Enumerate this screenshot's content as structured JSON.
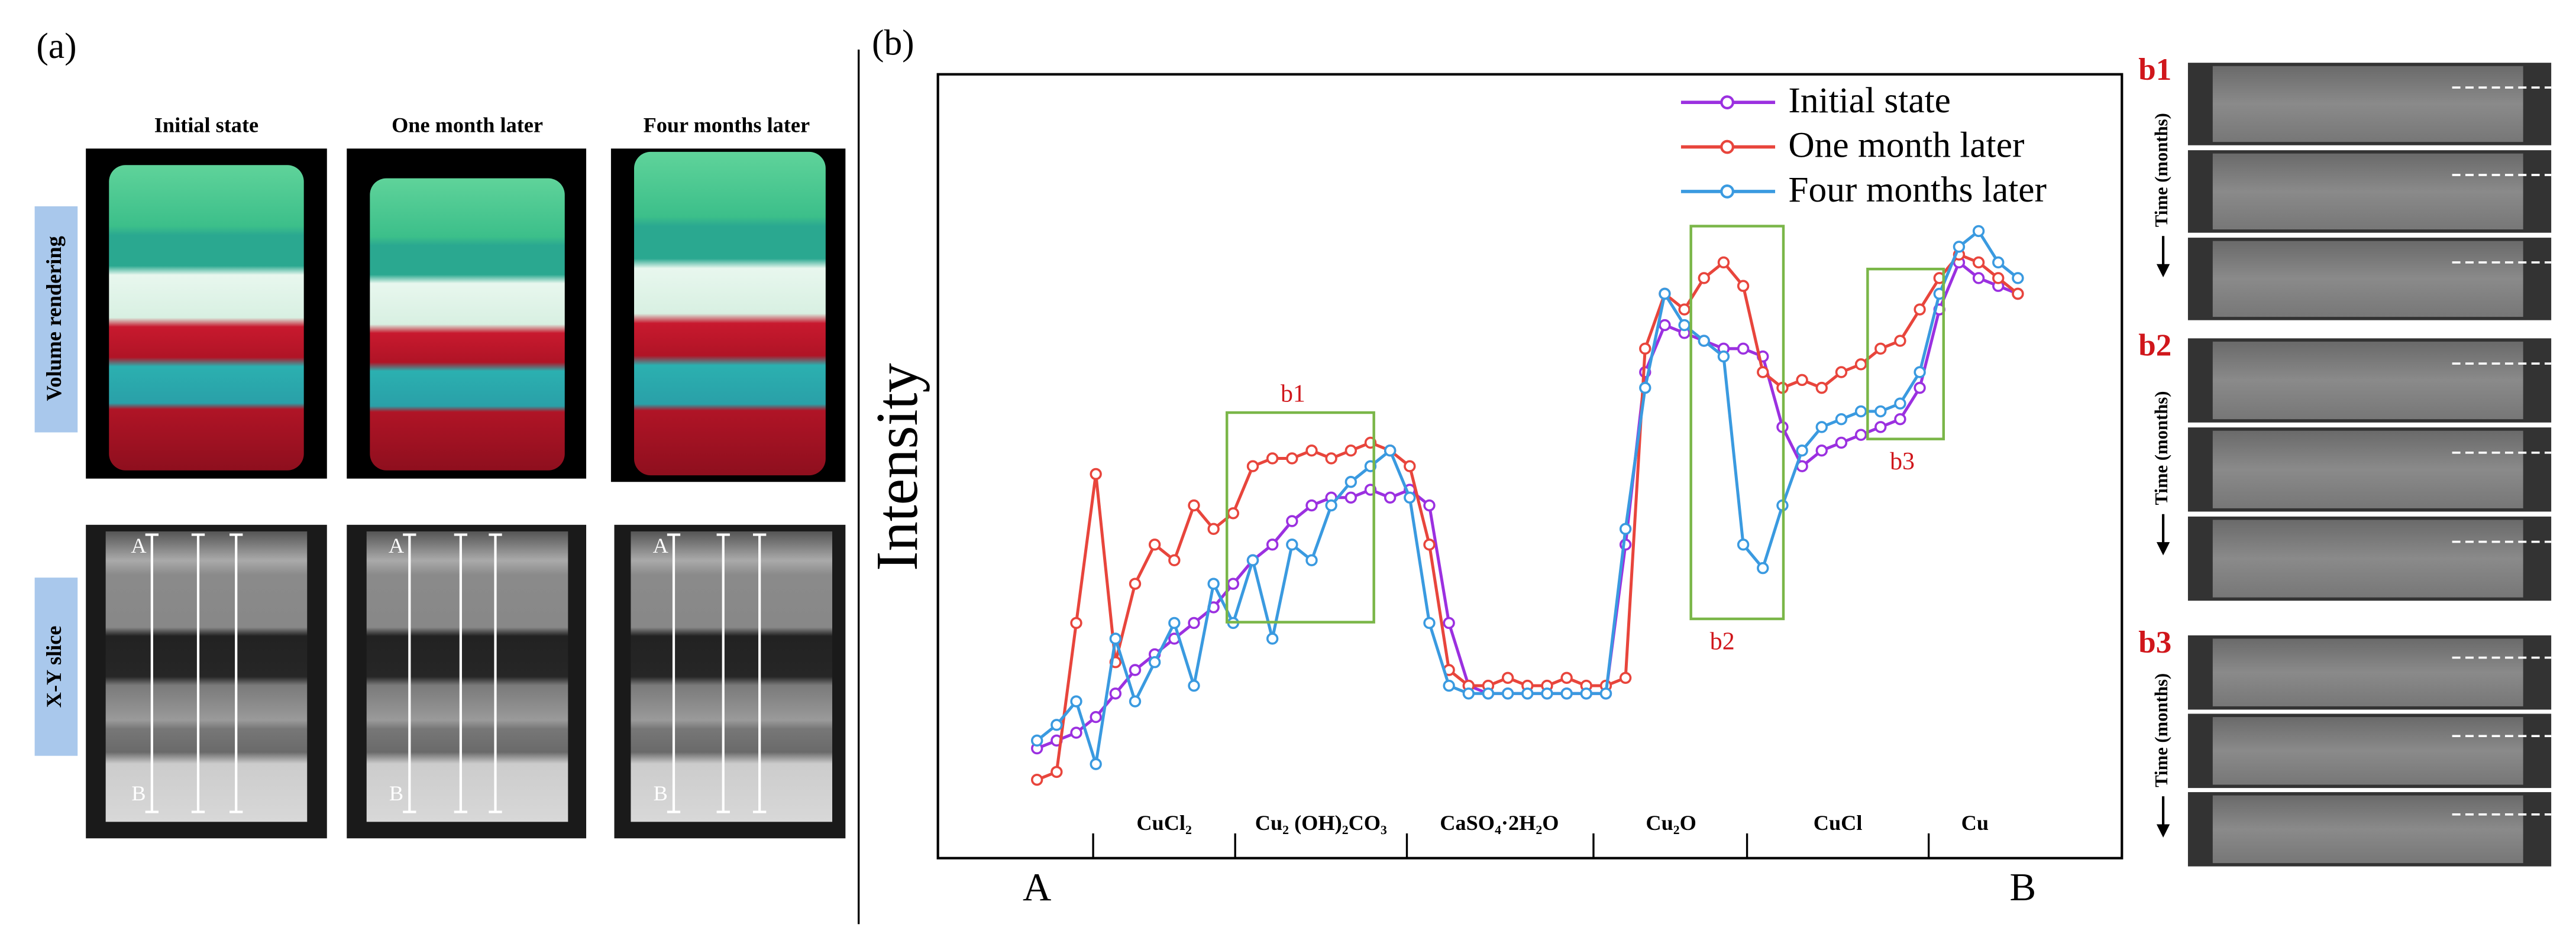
{
  "panel_a": {
    "label": "(a)",
    "columns": [
      "Initial state",
      "One month later",
      "Four months later"
    ],
    "rows": [
      "Volume rendering",
      "X-Y slice"
    ],
    "slice_points": [
      [
        "A",
        "B"
      ],
      [
        "A",
        "B"
      ],
      [
        "A",
        "B"
      ]
    ]
  },
  "chart_data": {
    "type": "line",
    "label": "(b)",
    "y_label": "Intensity",
    "x_ends": [
      "A",
      "B"
    ],
    "regions": [
      "CuCl₂",
      "Cu₂ (OH)₂CO₃",
      "CaSO₄·2H₂O",
      "Cu₂O",
      "CuCl",
      "Cu"
    ],
    "boxes": [
      "b1",
      "b2",
      "b3"
    ],
    "xlim": [
      0,
      100
    ],
    "ylim": [
      0,
      100
    ],
    "x": [
      0,
      2,
      4,
      6,
      8,
      10,
      12,
      14,
      16,
      18,
      20,
      22,
      24,
      26,
      28,
      30,
      32,
      34,
      36,
      38,
      40,
      42,
      44,
      46,
      48,
      50,
      52,
      54,
      56,
      58,
      60,
      62,
      64,
      66,
      68,
      70,
      72,
      74,
      76,
      78,
      80,
      82,
      84,
      86,
      88,
      90,
      92,
      94,
      96,
      98,
      100
    ],
    "series": [
      {
        "name": "Initial state",
        "color": "#9b30e0",
        "values": [
          14,
          15,
          16,
          18,
          21,
          24,
          26,
          28,
          30,
          32,
          35,
          38,
          40,
          43,
          45,
          46,
          46,
          47,
          46,
          47,
          45,
          30,
          22,
          21,
          21,
          21,
          21,
          21,
          21,
          21,
          40,
          62,
          68,
          67,
          66,
          65,
          65,
          64,
          55,
          50,
          52,
          53,
          54,
          55,
          56,
          60,
          70,
          76,
          74,
          73,
          72
        ]
      },
      {
        "name": "One month later",
        "color": "#e8453c",
        "values": [
          10,
          11,
          30,
          49,
          25,
          35,
          40,
          38,
          45,
          42,
          44,
          50,
          51,
          51,
          52,
          51,
          52,
          53,
          52,
          50,
          40,
          24,
          22,
          22,
          23,
          22,
          22,
          23,
          22,
          22,
          23,
          65,
          72,
          70,
          74,
          76,
          73,
          62,
          60,
          61,
          60,
          62,
          63,
          65,
          66,
          70,
          74,
          77,
          76,
          74,
          72
        ]
      },
      {
        "name": "Four months later",
        "color": "#3a9ae0",
        "values": [
          15,
          17,
          20,
          12,
          28,
          20,
          25,
          30,
          22,
          35,
          30,
          38,
          28,
          40,
          38,
          45,
          48,
          50,
          52,
          46,
          30,
          22,
          21,
          21,
          21,
          21,
          21,
          21,
          21,
          21,
          42,
          60,
          72,
          68,
          66,
          64,
          40,
          37,
          45,
          52,
          55,
          56,
          57,
          57,
          58,
          62,
          72,
          78,
          80,
          76,
          74
        ]
      }
    ],
    "legend": "upper right"
  },
  "side_panels": [
    {
      "label": "b1",
      "axis": "Time (months)"
    },
    {
      "label": "b2",
      "axis": "Time (months)"
    },
    {
      "label": "b3",
      "axis": "Time (months)"
    }
  ]
}
